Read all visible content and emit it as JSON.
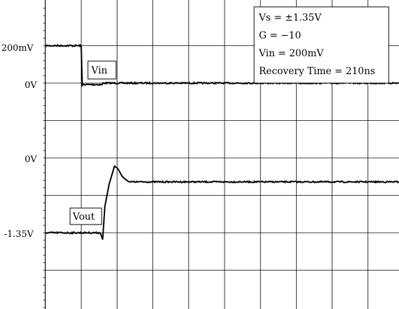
{
  "chart_data": {
    "type": "line",
    "title": "",
    "grid": true,
    "channels": [
      {
        "name": "Vin",
        "zero_label": "0V",
        "level_label": "200mV",
        "segments": [
          {
            "t": 0,
            "v": 200
          },
          {
            "t": 1.0,
            "v": 200
          },
          {
            "t": 1.03,
            "v": 0
          },
          {
            "t": 10,
            "v": 0
          }
        ]
      },
      {
        "name": "Vout",
        "zero_label": "0V",
        "level_label": "-1.35V",
        "settled_level_div": -0.64
      }
    ],
    "y_labels": [
      {
        "text": "200mV"
      },
      {
        "text": "0V"
      },
      {
        "text": "0V"
      },
      {
        "text": "-1.35V"
      }
    ],
    "annotation_lines": [
      "Vs = ±1.35V",
      "G = −10",
      "Vin = 200mV",
      "Recovery Time = 210ns"
    ]
  }
}
